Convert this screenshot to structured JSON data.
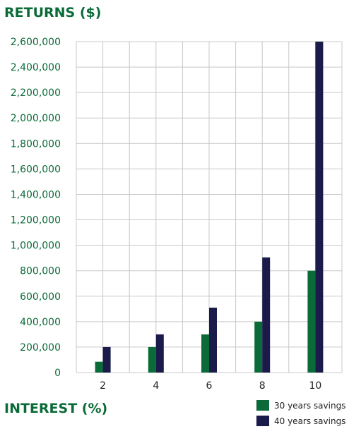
{
  "chart_data": {
    "type": "bar",
    "title": "RETURNS ($)",
    "xlabel": "INTEREST (%)",
    "ylabel": "",
    "categories": [
      "2",
      "4",
      "6",
      "8",
      "10"
    ],
    "series": [
      {
        "name": "30 years savings",
        "values": [
          85000,
          200000,
          300000,
          400000,
          800000
        ],
        "color": "#0b6b38"
      },
      {
        "name": "40 years savings",
        "values": [
          200000,
          300000,
          510000,
          905000,
          2600000
        ],
        "color": "#1b1b4b"
      }
    ],
    "ylim": [
      0,
      2600000
    ],
    "y_ticks": [
      0,
      200000,
      400000,
      600000,
      800000,
      1000000,
      1200000,
      1400000,
      1600000,
      1800000,
      2000000,
      2200000,
      2400000,
      2600000
    ],
    "y_tick_labels": [
      "0",
      "200,000",
      "400,000",
      "600,000",
      "800,000",
      "1,000,000",
      "1,200,000",
      "1,400,000",
      "1,600,000",
      "1,800,000",
      "2,000,000",
      "2,200,000",
      "2,400,000",
      "2,600,000"
    ],
    "grid": true,
    "legend_position": "bottom-right",
    "colors": {
      "title": "#0b6b38",
      "tick_label": "#0b6b38",
      "x_tick_label": "#222222",
      "grid": "#c8c8c8",
      "axis": "#333333"
    }
  }
}
